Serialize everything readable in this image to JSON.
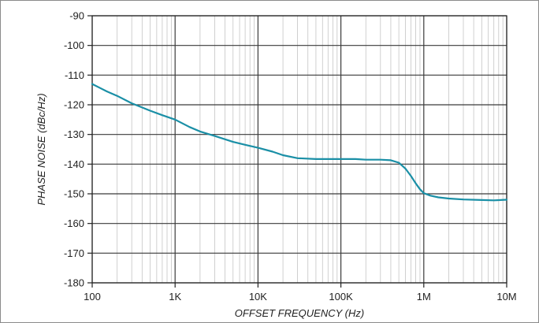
{
  "chart_data": {
    "type": "line",
    "title": "",
    "xlabel": "OFFSET FREQUENCY (Hz)",
    "ylabel": "PHASE NOISE (dBc/Hz)",
    "x_scale": "log",
    "xlim": [
      100,
      10000000
    ],
    "ylim": [
      -180,
      -90
    ],
    "grid": true,
    "x_ticks": [
      {
        "value": 100,
        "label": "100"
      },
      {
        "value": 1000,
        "label": "1K"
      },
      {
        "value": 10000,
        "label": "10K"
      },
      {
        "value": 100000,
        "label": "100K"
      },
      {
        "value": 1000000,
        "label": "1M"
      },
      {
        "value": 10000000,
        "label": "10M"
      }
    ],
    "y_ticks": [
      {
        "value": -90,
        "label": "-90"
      },
      {
        "value": -100,
        "label": "-100"
      },
      {
        "value": -110,
        "label": "-110"
      },
      {
        "value": -120,
        "label": "-120"
      },
      {
        "value": -130,
        "label": "-130"
      },
      {
        "value": -140,
        "label": "-140"
      },
      {
        "value": -150,
        "label": "-150"
      },
      {
        "value": -160,
        "label": "-160"
      },
      {
        "value": -170,
        "label": "-170"
      },
      {
        "value": -180,
        "label": "-180"
      }
    ],
    "series": [
      {
        "color": "#1a8fa6",
        "x": [
          100,
          150,
          200,
          300,
          500,
          700,
          1000,
          1500,
          2000,
          3000,
          5000,
          7000,
          10000,
          15000,
          20000,
          30000,
          50000,
          70000,
          100000,
          150000,
          200000,
          300000,
          400000,
          500000,
          600000,
          700000,
          800000,
          900000,
          1000000,
          1200000,
          1500000,
          2000000,
          3000000,
          5000000,
          7000000,
          10000000
        ],
        "y": [
          -113,
          -115.5,
          -117,
          -119.5,
          -122,
          -123.5,
          -125,
          -127.5,
          -129,
          -130.5,
          -132.5,
          -133.5,
          -134.5,
          -135.8,
          -137,
          -138,
          -138.3,
          -138.3,
          -138.3,
          -138.3,
          -138.5,
          -138.5,
          -138.7,
          -139.5,
          -141.5,
          -144,
          -146.5,
          -148.5,
          -149.8,
          -150.6,
          -151.2,
          -151.6,
          -151.9,
          -152.1,
          -152.2,
          -152
        ]
      }
    ]
  }
}
